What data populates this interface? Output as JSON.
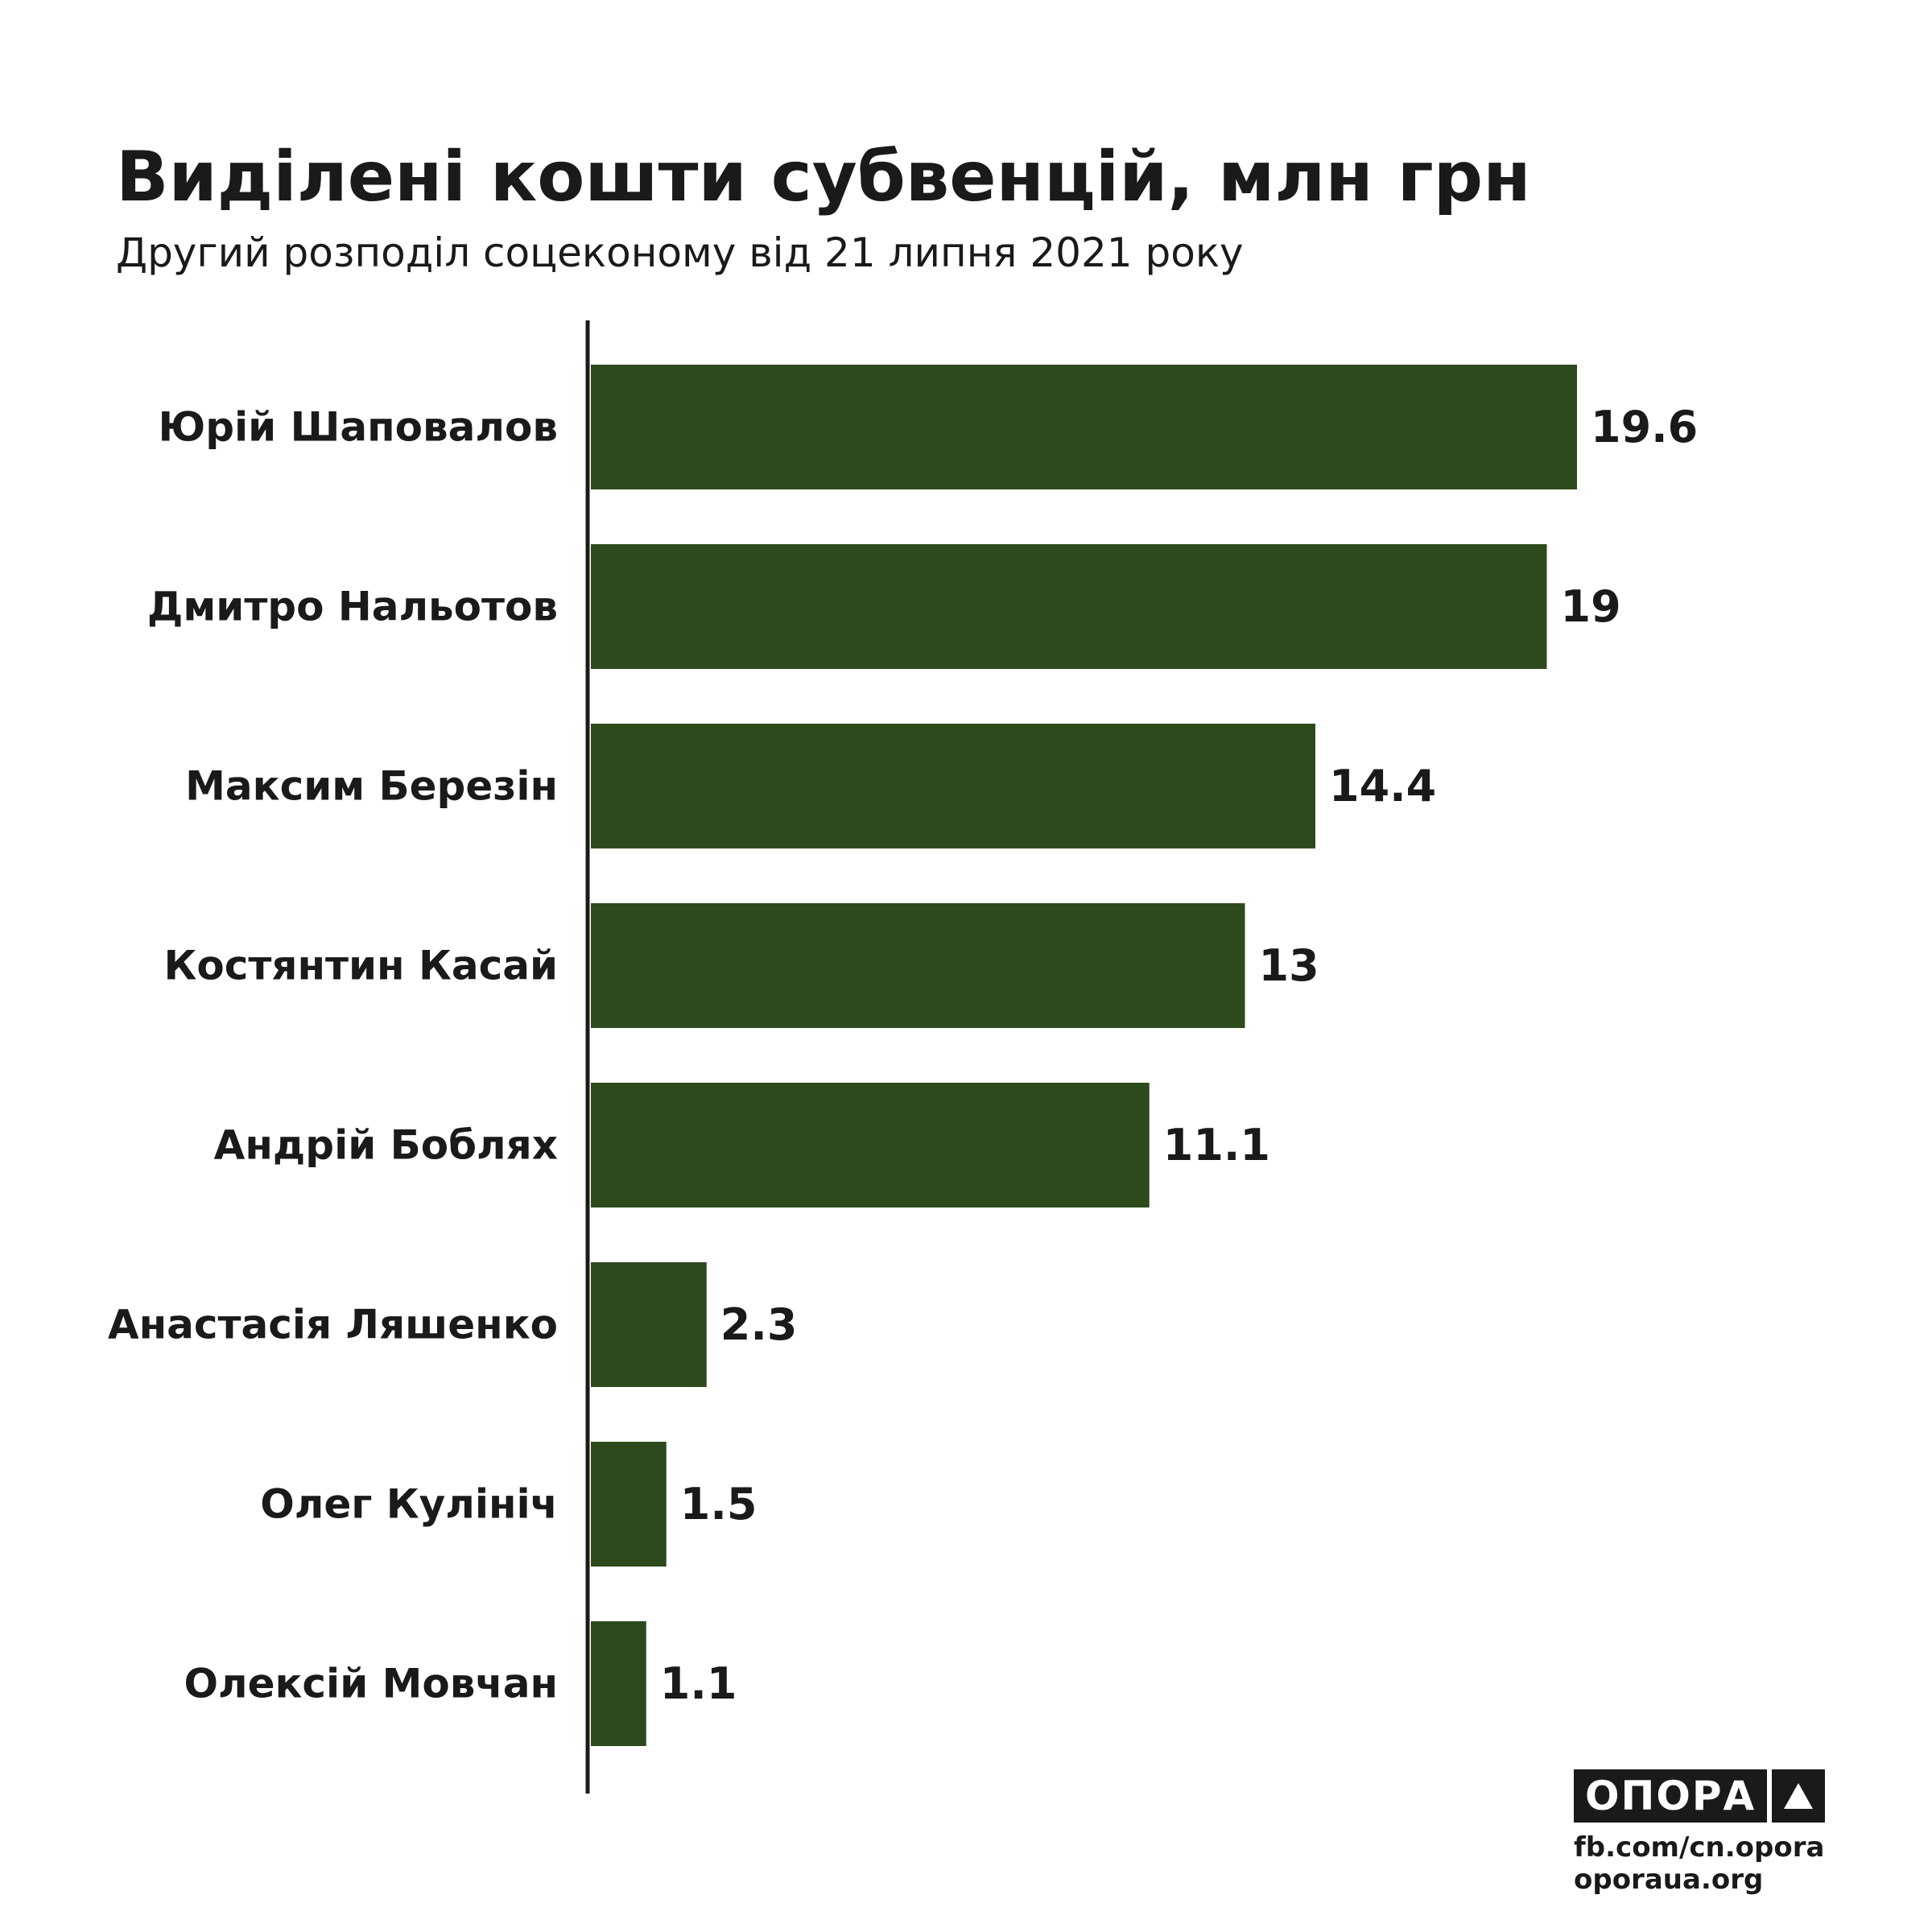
{
  "title": "Виділені кошти субвенцій, млн грн",
  "subtitle": "Другий розподіл соцеконому від 21 липня 2021 року",
  "colors": {
    "bar": "#2d4a1c",
    "axis": "#1a1a1a"
  },
  "chart_data": {
    "type": "bar",
    "orientation": "horizontal",
    "categories": [
      "Юрій Шаповалов",
      "Дмитро Нальотов",
      "Максим Березін",
      "Костянтин Касай",
      "Андрій Боблях",
      "Анастасія Ляшенко",
      "Олег Кулініч",
      "Олексій Мовчан"
    ],
    "values": [
      19.6,
      19,
      14.4,
      13,
      11.1,
      2.3,
      1.5,
      1.1
    ],
    "value_labels": [
      "19.6",
      "19",
      "14.4",
      "13",
      "11.1",
      "2.3",
      "1.5",
      "1.1"
    ],
    "title": "Виділені кошти субвенцій, млн грн",
    "subtitle": "Другий розподіл соцеконому від 21 липня 2021 року",
    "xlabel": "",
    "ylabel": "",
    "xlim": [
      0,
      19.6
    ],
    "grid": false
  },
  "logo": {
    "word": "ОПОРА",
    "icon": "triangle-up-icon"
  },
  "links": [
    "fb.com/cn.opora",
    "oporaua.org"
  ]
}
